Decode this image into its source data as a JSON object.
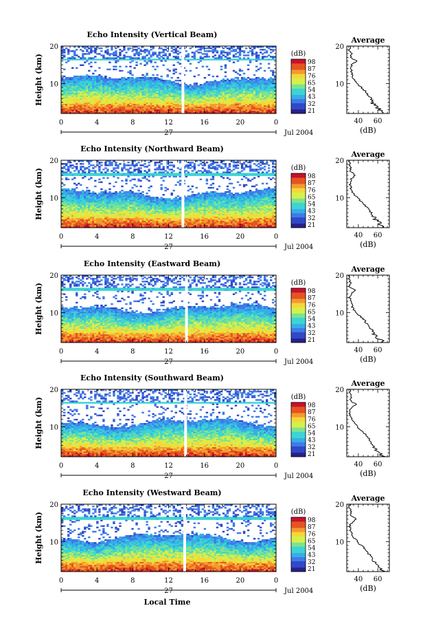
{
  "figure": {
    "x_axis_title": "Local Time",
    "colorbar_unit": "(dB)",
    "colorbar_ticks": [
      "98",
      "87",
      "76",
      "65",
      "54",
      "43",
      "32",
      "21"
    ],
    "colormap": [
      "#2a1f8a",
      "#2f49c8",
      "#3f7be8",
      "#35aee8",
      "#3cd4d2",
      "#7ee38f",
      "#d6ef4a",
      "#f6d63a",
      "#f39a2f",
      "#e5531f",
      "#c8102b"
    ],
    "profile_title": "Average",
    "profile_xlabel": "(dB)"
  },
  "chart_data": [
    {
      "type": "heatmap",
      "title": "Echo Intensity (Vertical Beam)",
      "ylabel": "Height (km)",
      "ylim": [
        2,
        20
      ],
      "yticks": [
        "10",
        "20"
      ],
      "xlim": [
        0,
        24
      ],
      "xticks": [
        "0",
        "4",
        "8",
        "12",
        "16",
        "20",
        "0"
      ],
      "date_day": "27",
      "date_label": "Jul 2004",
      "colorbar": {
        "unit": "(dB)",
        "range": [
          21,
          98
        ],
        "ticks": [
          "98",
          "87",
          "76",
          "65",
          "54",
          "43",
          "32",
          "21"
        ]
      },
      "data_gap_hour": 13.6,
      "tropopause_km": 16.5,
      "profile": {
        "title": "Average",
        "xlabel": "(dB)",
        "xticks": [
          "40",
          "60"
        ],
        "xlim": [
          28,
          72
        ],
        "yticks": [
          "10",
          "20"
        ],
        "height_km": [
          2,
          3,
          4,
          5,
          6,
          7,
          8,
          9,
          10,
          11,
          12,
          13,
          14,
          15,
          16,
          17,
          18,
          19,
          20
        ],
        "mean_db": [
          66,
          62,
          57,
          55,
          53,
          50,
          47,
          43,
          39,
          36,
          34,
          33,
          32,
          33,
          38,
          32,
          33,
          31,
          32
        ]
      }
    },
    {
      "type": "heatmap",
      "title": "Echo Intensity (Northward Beam)",
      "ylabel": "Height (km)",
      "ylim": [
        2,
        20
      ],
      "yticks": [
        "10",
        "20"
      ],
      "xlim": [
        0,
        24
      ],
      "xticks": [
        "0",
        "4",
        "8",
        "12",
        "16",
        "20",
        "0"
      ],
      "date_day": "27",
      "date_label": "Jul 2004",
      "colorbar": {
        "unit": "(dB)",
        "range": [
          21,
          98
        ],
        "ticks": [
          "98",
          "87",
          "76",
          "65",
          "54",
          "43",
          "32",
          "21"
        ]
      },
      "data_gap_hour": 13.6,
      "tropopause_km": 16.2,
      "profile": {
        "title": "Average",
        "xlabel": "(dB)",
        "xticks": [
          "40",
          "60"
        ],
        "xlim": [
          28,
          72
        ],
        "yticks": [
          "10",
          "20"
        ],
        "height_km": [
          2,
          3,
          4,
          5,
          6,
          7,
          8,
          9,
          10,
          11,
          12,
          13,
          14,
          15,
          16,
          17,
          18,
          19,
          20
        ],
        "mean_db": [
          67,
          63,
          58,
          55,
          53,
          50,
          47,
          43,
          39,
          35,
          33,
          32,
          31,
          33,
          37,
          32,
          32,
          31,
          31
        ]
      }
    },
    {
      "type": "heatmap",
      "title": "Echo Intensity (Eastward Beam)",
      "ylabel": "Height (km)",
      "ylim": [
        2,
        20
      ],
      "yticks": [
        "10",
        "20"
      ],
      "xlim": [
        0,
        24
      ],
      "xticks": [
        "0",
        "4",
        "8",
        "12",
        "16",
        "20",
        "0"
      ],
      "date_day": "27",
      "date_label": "Jul 2004",
      "colorbar": {
        "unit": "(dB)",
        "range": [
          21,
          98
        ],
        "ticks": [
          "98",
          "87",
          "76",
          "65",
          "54",
          "43",
          "32",
          "21"
        ]
      },
      "data_gap_hour": 14.0,
      "tropopause_km": 16.3,
      "profile": {
        "title": "Average",
        "xlabel": "(dB)",
        "xticks": [
          "40",
          "60"
        ],
        "xlim": [
          28,
          72
        ],
        "yticks": [
          "10",
          "20"
        ],
        "height_km": [
          2,
          3,
          4,
          5,
          6,
          7,
          8,
          9,
          10,
          11,
          12,
          13,
          14,
          15,
          16,
          17,
          18,
          19,
          20
        ],
        "mean_db": [
          66,
          62,
          57,
          55,
          52,
          49,
          46,
          42,
          38,
          35,
          33,
          32,
          31,
          33,
          36,
          31,
          32,
          30,
          31
        ]
      }
    },
    {
      "type": "heatmap",
      "title": "Echo Intensity (Southward Beam)",
      "ylabel": "Height (km)",
      "ylim": [
        2,
        20
      ],
      "yticks": [
        "10",
        "20"
      ],
      "xlim": [
        0,
        24
      ],
      "xticks": [
        "0",
        "4",
        "8",
        "12",
        "16",
        "20",
        "0"
      ],
      "date_day": "27",
      "date_label": "Jul 2004",
      "colorbar": {
        "unit": "(dB)",
        "range": [
          21,
          98
        ],
        "ticks": [
          "98",
          "87",
          "76",
          "65",
          "54",
          "43",
          "32",
          "21"
        ]
      },
      "data_gap_hour": 13.9,
      "tropopause_km": 16.4,
      "profile": {
        "title": "Average",
        "xlabel": "(dB)",
        "xticks": [
          "40",
          "60"
        ],
        "xlim": [
          28,
          72
        ],
        "yticks": [
          "10",
          "20"
        ],
        "height_km": [
          2,
          3,
          4,
          5,
          6,
          7,
          8,
          9,
          10,
          11,
          12,
          13,
          14,
          15,
          16,
          17,
          18,
          19,
          20
        ],
        "mean_db": [
          66,
          62,
          58,
          55,
          53,
          50,
          47,
          43,
          39,
          36,
          34,
          32,
          31,
          33,
          37,
          32,
          32,
          31,
          31
        ]
      }
    },
    {
      "type": "heatmap",
      "title": "Echo Intensity (Westward Beam)",
      "ylabel": "Height (km)",
      "ylim": [
        2,
        20
      ],
      "yticks": [
        "10",
        "20"
      ],
      "xlim": [
        0,
        24
      ],
      "xticks": [
        "0",
        "4",
        "8",
        "12",
        "16",
        "20",
        "0"
      ],
      "date_day": "27",
      "date_label": "Jul 2004",
      "colorbar": {
        "unit": "(dB)",
        "range": [
          21,
          98
        ],
        "ticks": [
          "98",
          "87",
          "76",
          "65",
          "54",
          "43",
          "32",
          "21"
        ]
      },
      "data_gap_hour": 13.8,
      "tropopause_km": 16.2,
      "profile": {
        "title": "Average",
        "xlabel": "(dB)",
        "xticks": [
          "40",
          "60"
        ],
        "xlim": [
          28,
          72
        ],
        "yticks": [
          "10",
          "20"
        ],
        "height_km": [
          2,
          3,
          4,
          5,
          6,
          7,
          8,
          9,
          10,
          11,
          12,
          13,
          14,
          15,
          16,
          17,
          18,
          19,
          20
        ],
        "mean_db": [
          67,
          63,
          58,
          55,
          53,
          50,
          47,
          43,
          39,
          35,
          33,
          32,
          31,
          33,
          38,
          32,
          32,
          31,
          31
        ]
      }
    }
  ]
}
